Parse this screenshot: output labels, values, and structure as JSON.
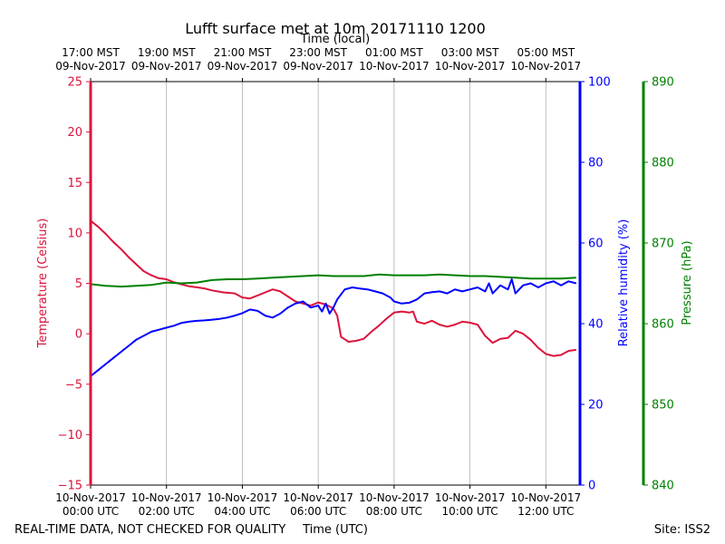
{
  "chart_data": {
    "type": "line",
    "title": "Lufft surface met at 10m 20171110 1200",
    "top_axis_title": "Time (local)",
    "xlabel": "Time (UTC)",
    "footer_left": "REAL-TIME DATA, NOT CHECKED FOR QUALITY",
    "footer_right": "Site: ISS2",
    "x_unit": "hours since 10-Nov-2017 00:00 UTC",
    "xlim": [
      0,
      12.9
    ],
    "bottom_ticks": [
      {
        "x": 0,
        "l1": "10-Nov-2017",
        "l2": "00:00 UTC"
      },
      {
        "x": 2,
        "l1": "10-Nov-2017",
        "l2": "02:00 UTC"
      },
      {
        "x": 4,
        "l1": "10-Nov-2017",
        "l2": "04:00 UTC"
      },
      {
        "x": 6,
        "l1": "10-Nov-2017",
        "l2": "06:00 UTC"
      },
      {
        "x": 8,
        "l1": "10-Nov-2017",
        "l2": "08:00 UTC"
      },
      {
        "x": 10,
        "l1": "10-Nov-2017",
        "l2": "10:00 UTC"
      },
      {
        "x": 12,
        "l1": "10-Nov-2017",
        "l2": "12:00 UTC"
      }
    ],
    "top_ticks": [
      {
        "x": 0,
        "l1": "17:00 MST",
        "l2": "09-Nov-2017"
      },
      {
        "x": 2,
        "l1": "19:00 MST",
        "l2": "09-Nov-2017"
      },
      {
        "x": 4,
        "l1": "21:00 MST",
        "l2": "09-Nov-2017"
      },
      {
        "x": 6,
        "l1": "23:00 MST",
        "l2": "09-Nov-2017"
      },
      {
        "x": 8,
        "l1": "01:00 MST",
        "l2": "10-Nov-2017"
      },
      {
        "x": 10,
        "l1": "03:00 MST",
        "l2": "10-Nov-2017"
      },
      {
        "x": 12,
        "l1": "05:00 MST",
        "l2": "10-Nov-2017"
      }
    ],
    "axes": {
      "temperature": {
        "label": "Temperature (Celsius)",
        "color": "#dc143c",
        "ylim": [
          -15,
          25
        ],
        "ticks": [
          -15,
          -10,
          -5,
          0,
          5,
          10,
          15,
          20,
          25
        ]
      },
      "humidity": {
        "label": "Relative humidity (%)",
        "color": "#0000ff",
        "ylim": [
          0,
          100
        ],
        "ticks": [
          0,
          20,
          40,
          60,
          80,
          100
        ]
      },
      "pressure": {
        "label": "Pressure (hPa)",
        "color": "#008000",
        "ylim": [
          840,
          890
        ],
        "ticks": [
          840,
          850,
          860,
          870,
          880,
          890
        ]
      }
    },
    "series": [
      {
        "name": "Temperature",
        "axis": "temperature",
        "color": "#dc143c",
        "points": [
          [
            0,
            11.2
          ],
          [
            0.2,
            10.6
          ],
          [
            0.4,
            9.9
          ],
          [
            0.6,
            9.1
          ],
          [
            0.8,
            8.4
          ],
          [
            1.0,
            7.6
          ],
          [
            1.2,
            6.9
          ],
          [
            1.4,
            6.2
          ],
          [
            1.6,
            5.8
          ],
          [
            1.8,
            5.5
          ],
          [
            2.0,
            5.4
          ],
          [
            2.2,
            5.1
          ],
          [
            2.4,
            4.9
          ],
          [
            2.6,
            4.7
          ],
          [
            2.8,
            4.6
          ],
          [
            3.0,
            4.5
          ],
          [
            3.2,
            4.3
          ],
          [
            3.5,
            4.1
          ],
          [
            3.8,
            4.0
          ],
          [
            4.0,
            3.6
          ],
          [
            4.2,
            3.5
          ],
          [
            4.4,
            3.8
          ],
          [
            4.6,
            4.1
          ],
          [
            4.8,
            4.4
          ],
          [
            5.0,
            4.2
          ],
          [
            5.2,
            3.7
          ],
          [
            5.4,
            3.2
          ],
          [
            5.6,
            3.0
          ],
          [
            5.8,
            2.8
          ],
          [
            6.0,
            3.1
          ],
          [
            6.2,
            2.9
          ],
          [
            6.4,
            2.5
          ],
          [
            6.5,
            1.8
          ],
          [
            6.6,
            -0.3
          ],
          [
            6.8,
            -0.8
          ],
          [
            7.0,
            -0.7
          ],
          [
            7.2,
            -0.5
          ],
          [
            7.4,
            0.2
          ],
          [
            7.6,
            0.8
          ],
          [
            7.8,
            1.5
          ],
          [
            8.0,
            2.1
          ],
          [
            8.2,
            2.2
          ],
          [
            8.4,
            2.1
          ],
          [
            8.5,
            2.2
          ],
          [
            8.6,
            1.2
          ],
          [
            8.8,
            1.0
          ],
          [
            9.0,
            1.3
          ],
          [
            9.2,
            0.9
          ],
          [
            9.4,
            0.7
          ],
          [
            9.6,
            0.9
          ],
          [
            9.8,
            1.2
          ],
          [
            10.0,
            1.1
          ],
          [
            10.2,
            0.9
          ],
          [
            10.4,
            -0.2
          ],
          [
            10.6,
            -0.9
          ],
          [
            10.8,
            -0.5
          ],
          [
            11.0,
            -0.4
          ],
          [
            11.2,
            0.3
          ],
          [
            11.4,
            0.0
          ],
          [
            11.6,
            -0.6
          ],
          [
            11.8,
            -1.4
          ],
          [
            12.0,
            -2.0
          ],
          [
            12.2,
            -2.2
          ],
          [
            12.4,
            -2.1
          ],
          [
            12.6,
            -1.7
          ],
          [
            12.8,
            -1.6
          ]
        ]
      },
      {
        "name": "Relative humidity",
        "axis": "humidity",
        "color": "#0000ff",
        "points": [
          [
            0,
            27
          ],
          [
            0.2,
            28.5
          ],
          [
            0.4,
            30
          ],
          [
            0.6,
            31.5
          ],
          [
            0.8,
            33
          ],
          [
            1.0,
            34.5
          ],
          [
            1.2,
            36
          ],
          [
            1.4,
            37
          ],
          [
            1.6,
            38
          ],
          [
            1.8,
            38.5
          ],
          [
            2.0,
            39
          ],
          [
            2.2,
            39.5
          ],
          [
            2.4,
            40.2
          ],
          [
            2.6,
            40.5
          ],
          [
            2.8,
            40.7
          ],
          [
            3.0,
            40.8
          ],
          [
            3.2,
            41
          ],
          [
            3.4,
            41.2
          ],
          [
            3.6,
            41.5
          ],
          [
            3.8,
            42
          ],
          [
            4.0,
            42.6
          ],
          [
            4.2,
            43.5
          ],
          [
            4.4,
            43.2
          ],
          [
            4.6,
            42
          ],
          [
            4.8,
            41.5
          ],
          [
            5.0,
            42.5
          ],
          [
            5.2,
            44
          ],
          [
            5.4,
            45
          ],
          [
            5.6,
            45.5
          ],
          [
            5.8,
            44
          ],
          [
            6.0,
            44.5
          ],
          [
            6.1,
            43
          ],
          [
            6.2,
            45
          ],
          [
            6.3,
            42.5
          ],
          [
            6.4,
            44
          ],
          [
            6.5,
            46
          ],
          [
            6.7,
            48.5
          ],
          [
            6.9,
            49
          ],
          [
            7.1,
            48.7
          ],
          [
            7.3,
            48.5
          ],
          [
            7.5,
            48
          ],
          [
            7.7,
            47.5
          ],
          [
            7.9,
            46.5
          ],
          [
            8.0,
            45.5
          ],
          [
            8.2,
            45
          ],
          [
            8.4,
            45.2
          ],
          [
            8.6,
            46
          ],
          [
            8.8,
            47.5
          ],
          [
            9.0,
            47.8
          ],
          [
            9.2,
            48
          ],
          [
            9.4,
            47.5
          ],
          [
            9.6,
            48.5
          ],
          [
            9.8,
            48
          ],
          [
            10.0,
            48.5
          ],
          [
            10.2,
            49
          ],
          [
            10.4,
            48
          ],
          [
            10.5,
            50
          ],
          [
            10.6,
            47.5
          ],
          [
            10.8,
            49.5
          ],
          [
            11.0,
            48.5
          ],
          [
            11.1,
            51
          ],
          [
            11.2,
            47.5
          ],
          [
            11.4,
            49.5
          ],
          [
            11.6,
            50
          ],
          [
            11.8,
            49
          ],
          [
            12.0,
            50
          ],
          [
            12.2,
            50.5
          ],
          [
            12.4,
            49.5
          ],
          [
            12.6,
            50.5
          ],
          [
            12.8,
            50
          ]
        ]
      },
      {
        "name": "Pressure",
        "axis": "pressure",
        "color": "#008000",
        "points": [
          [
            0,
            864.9
          ],
          [
            0.4,
            864.7
          ],
          [
            0.8,
            864.6
          ],
          [
            1.2,
            864.7
          ],
          [
            1.6,
            864.8
          ],
          [
            2.0,
            865.1
          ],
          [
            2.4,
            865.0
          ],
          [
            2.8,
            865.1
          ],
          [
            3.2,
            865.4
          ],
          [
            3.6,
            865.5
          ],
          [
            4.0,
            865.5
          ],
          [
            4.4,
            865.6
          ],
          [
            4.8,
            865.7
          ],
          [
            5.2,
            865.8
          ],
          [
            5.6,
            865.9
          ],
          [
            6.0,
            866.0
          ],
          [
            6.4,
            865.9
          ],
          [
            6.8,
            865.9
          ],
          [
            7.2,
            865.9
          ],
          [
            7.6,
            866.1
          ],
          [
            8.0,
            866.0
          ],
          [
            8.4,
            866.0
          ],
          [
            8.8,
            866.0
          ],
          [
            9.2,
            866.1
          ],
          [
            9.6,
            866.0
          ],
          [
            10.0,
            865.9
          ],
          [
            10.4,
            865.9
          ],
          [
            10.8,
            865.8
          ],
          [
            11.2,
            865.7
          ],
          [
            11.6,
            865.6
          ],
          [
            12.0,
            865.6
          ],
          [
            12.4,
            865.6
          ],
          [
            12.8,
            865.7
          ]
        ]
      }
    ]
  }
}
